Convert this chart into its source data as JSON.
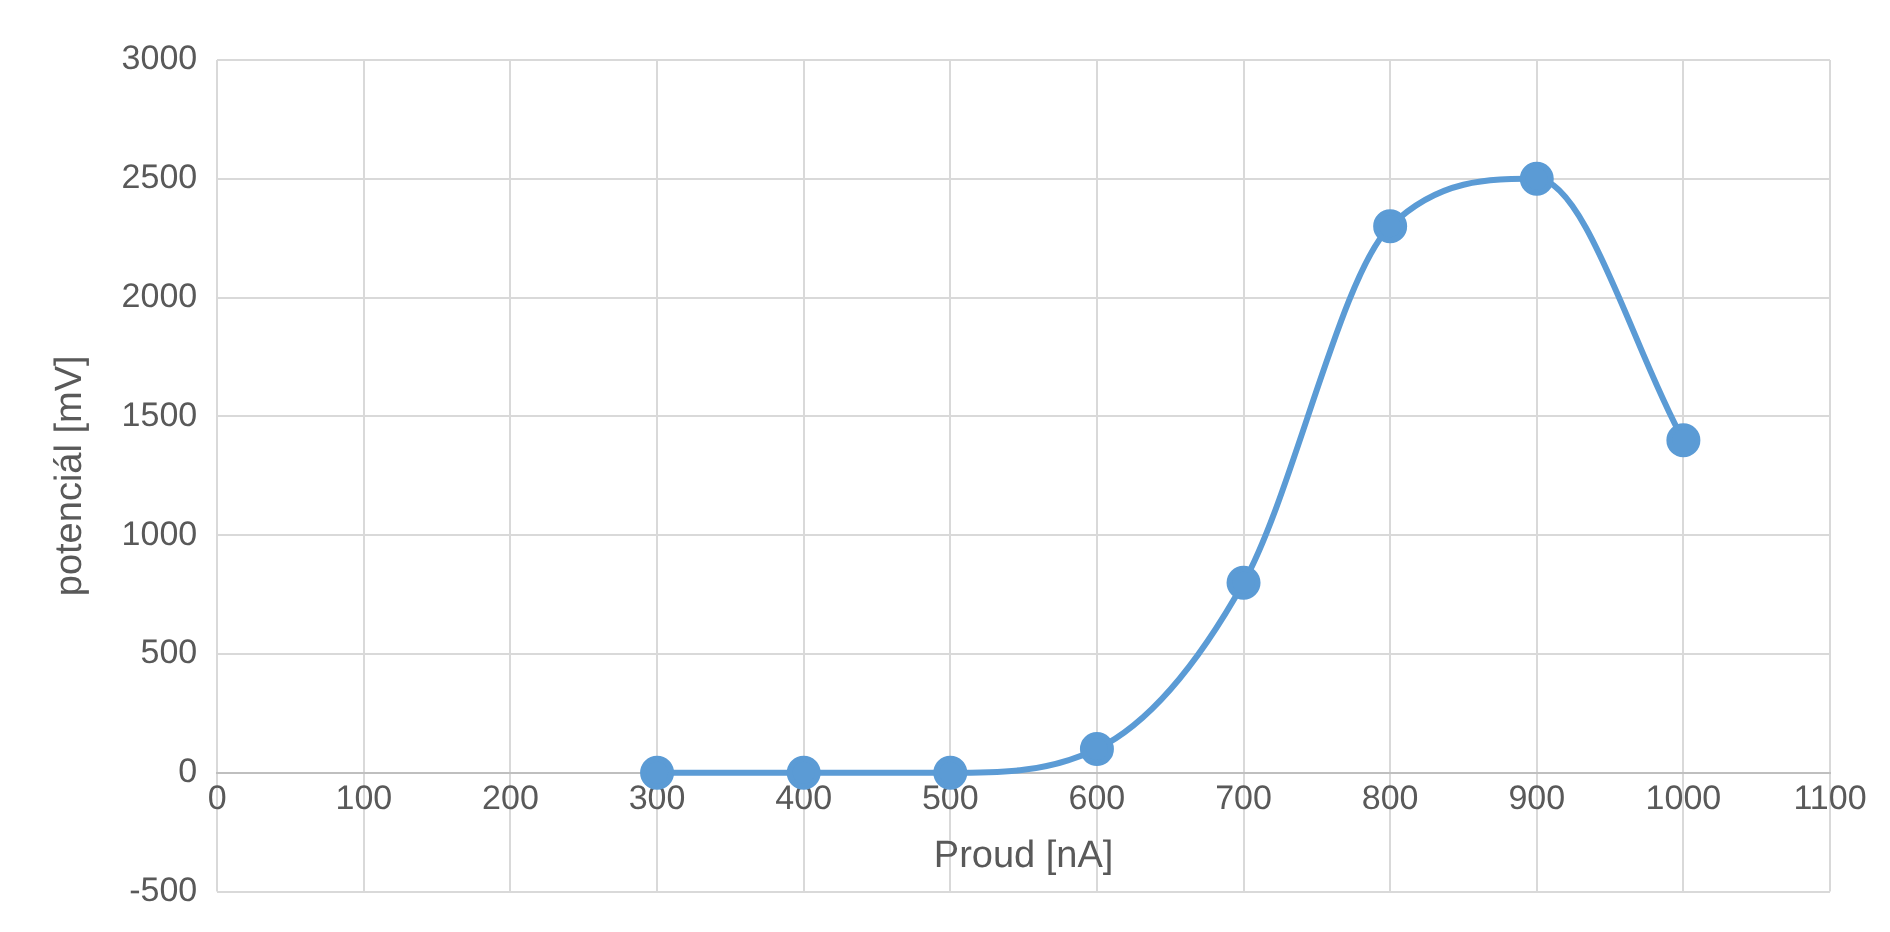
{
  "chart_data": {
    "type": "line",
    "xlabel": "Proud [nA]",
    "ylabel": "potenciál [mV]",
    "x": [
      300,
      400,
      500,
      600,
      700,
      800,
      900,
      1000
    ],
    "series": [
      {
        "color": "#5b9bd5",
        "values": [
          0,
          0,
          0,
          100,
          800,
          2300,
          2500,
          1400
        ]
      }
    ],
    "xlim": [
      0,
      1100
    ],
    "xticks": [
      0,
      100,
      200,
      300,
      400,
      500,
      600,
      700,
      800,
      900,
      1000,
      1100
    ],
    "ylim": [
      -500,
      3000
    ],
    "yticks": [
      -500,
      0,
      500,
      1000,
      1500,
      2000,
      2500,
      3000
    ],
    "grid": true,
    "marker": "circle",
    "legend": false
  }
}
